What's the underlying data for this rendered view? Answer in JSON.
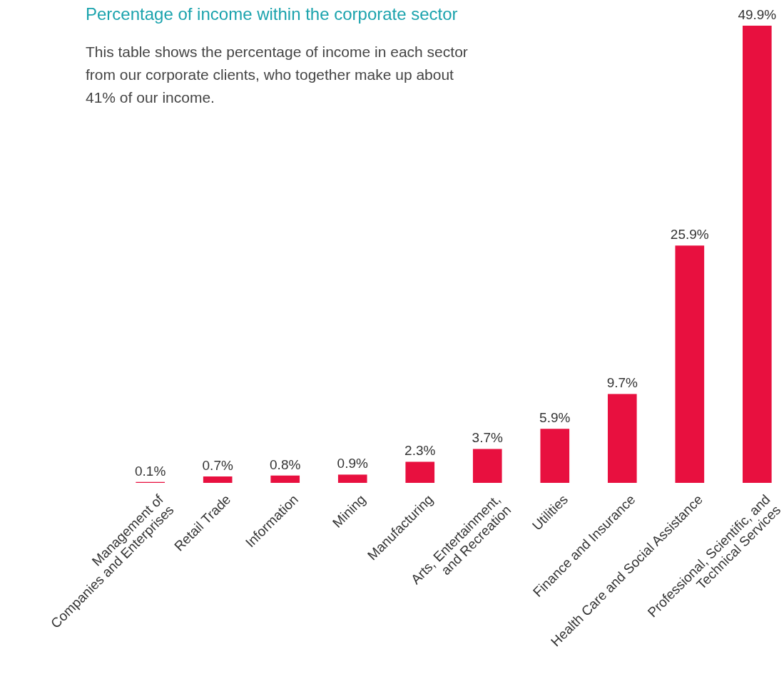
{
  "chart_data": {
    "type": "bar",
    "title": "Percentage of income within the corporate sector",
    "subtitle": "This table shows the percentage of income in each sector from our corporate clients, who together make up about 41% of our income.",
    "categories": [
      "Management of\nCompanies and Enterprises",
      "Retail Trade",
      "Information",
      "Mining",
      "Manufacturing",
      "Arts, Entertainment,\nand Recreation",
      "Utilities",
      "Finance and Insurance",
      "Health Care and Social Assistance",
      "Professional, Scientific, and\nTechnical Services"
    ],
    "values": [
      0.1,
      0.7,
      0.8,
      0.9,
      2.3,
      3.7,
      5.9,
      9.7,
      25.9,
      49.9
    ],
    "value_labels": [
      "0.1%",
      "0.7%",
      "0.8%",
      "0.9%",
      "2.3%",
      "3.7%",
      "5.9%",
      "9.7%",
      "25.9%",
      "49.9%"
    ],
    "color": "#e8103f",
    "relative": false
  }
}
